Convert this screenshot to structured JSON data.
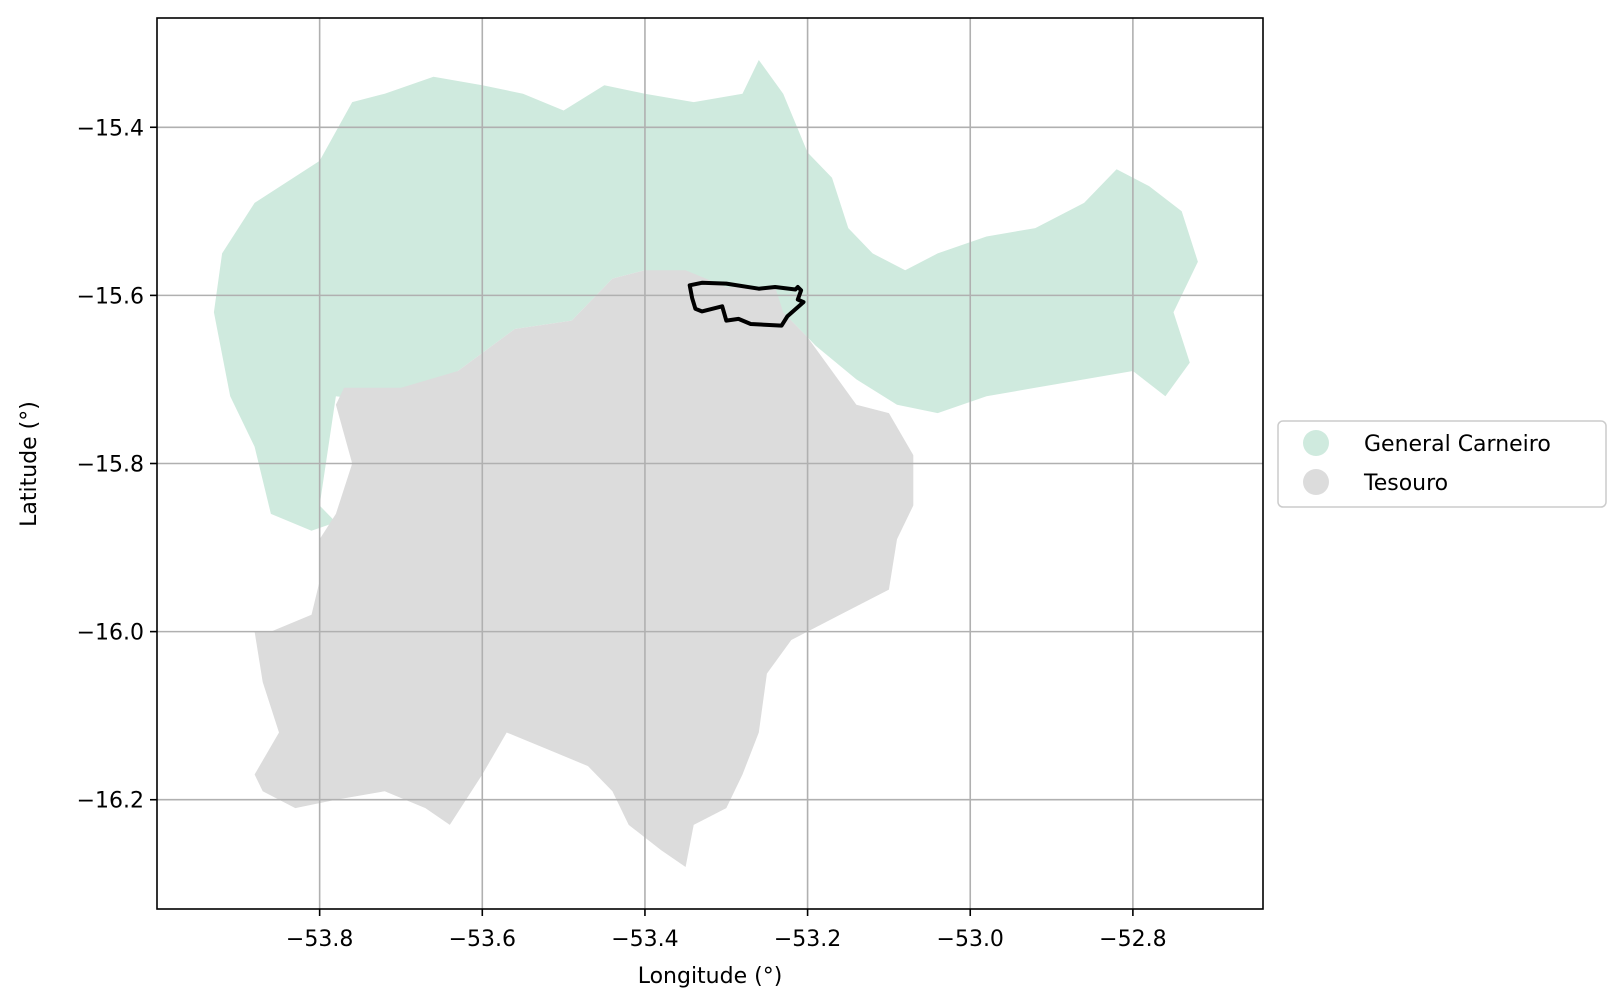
{
  "chart_data": {
    "type": "map",
    "xlabel": "Longitude (°)",
    "ylabel": "Latitude (°)",
    "xlim": [
      -54.0,
      -52.64
    ],
    "ylim": [
      -16.33,
      -15.27
    ],
    "x_ticks": [
      -53.8,
      -53.6,
      -53.4,
      -53.2,
      -53.0,
      -52.8
    ],
    "x_tick_labels": [
      "−53.8",
      "−53.6",
      "−53.4",
      "−53.2",
      "−53.0",
      "−52.8"
    ],
    "y_ticks": [
      -15.4,
      -15.6,
      -15.8,
      -16.0,
      -16.2
    ],
    "y_tick_labels": [
      "−15.4",
      "−15.6",
      "−15.8",
      "−16.0",
      "−16.2"
    ],
    "grid": true,
    "legend_placement": "right, outside plot",
    "series": [
      {
        "name": "General Carneiro",
        "color": "#cfeade",
        "polygon": [
          [
            -53.76,
            -15.37
          ],
          [
            -53.72,
            -15.36
          ],
          [
            -53.66,
            -15.34
          ],
          [
            -53.6,
            -15.35
          ],
          [
            -53.55,
            -15.36
          ],
          [
            -53.5,
            -15.38
          ],
          [
            -53.45,
            -15.35
          ],
          [
            -53.4,
            -15.36
          ],
          [
            -53.34,
            -15.37
          ],
          [
            -53.28,
            -15.36
          ],
          [
            -53.26,
            -15.32
          ],
          [
            -53.23,
            -15.36
          ],
          [
            -53.2,
            -15.43
          ],
          [
            -53.17,
            -15.46
          ],
          [
            -53.15,
            -15.52
          ],
          [
            -53.12,
            -15.55
          ],
          [
            -53.08,
            -15.57
          ],
          [
            -53.04,
            -15.55
          ],
          [
            -52.98,
            -15.53
          ],
          [
            -52.92,
            -15.52
          ],
          [
            -52.86,
            -15.49
          ],
          [
            -52.82,
            -15.45
          ],
          [
            -52.78,
            -15.47
          ],
          [
            -52.74,
            -15.5
          ],
          [
            -52.72,
            -15.56
          ],
          [
            -52.75,
            -15.62
          ],
          [
            -52.73,
            -15.68
          ],
          [
            -52.76,
            -15.72
          ],
          [
            -52.8,
            -15.69
          ],
          [
            -52.86,
            -15.7
          ],
          [
            -52.92,
            -15.71
          ],
          [
            -52.98,
            -15.72
          ],
          [
            -53.04,
            -15.74
          ],
          [
            -53.09,
            -15.73
          ],
          [
            -53.14,
            -15.7
          ],
          [
            -53.19,
            -15.66
          ],
          [
            -53.22,
            -15.63
          ],
          [
            -53.27,
            -15.6
          ],
          [
            -53.33,
            -15.58
          ],
          [
            -53.4,
            -15.57
          ],
          [
            -53.44,
            -15.58
          ],
          [
            -53.49,
            -15.63
          ],
          [
            -53.56,
            -15.64
          ],
          [
            -53.63,
            -15.69
          ],
          [
            -53.7,
            -15.73
          ],
          [
            -53.78,
            -15.72
          ],
          [
            -53.8,
            -15.85
          ],
          [
            -53.78,
            -15.87
          ],
          [
            -53.81,
            -15.88
          ],
          [
            -53.86,
            -15.86
          ],
          [
            -53.88,
            -15.78
          ],
          [
            -53.91,
            -15.72
          ],
          [
            -53.93,
            -15.62
          ],
          [
            -53.92,
            -15.55
          ],
          [
            -53.88,
            -15.49
          ],
          [
            -53.8,
            -15.44
          ]
        ]
      },
      {
        "name": "Tesouro",
        "color": "#dcdcdc",
        "polygon": [
          [
            -53.4,
            -15.57
          ],
          [
            -53.44,
            -15.58
          ],
          [
            -53.49,
            -15.63
          ],
          [
            -53.56,
            -15.64
          ],
          [
            -53.63,
            -15.69
          ],
          [
            -53.7,
            -15.71
          ],
          [
            -53.77,
            -15.71
          ],
          [
            -53.78,
            -15.73
          ],
          [
            -53.76,
            -15.8
          ],
          [
            -53.78,
            -15.86
          ],
          [
            -53.8,
            -15.89
          ],
          [
            -53.8,
            -15.94
          ],
          [
            -53.81,
            -15.98
          ],
          [
            -53.86,
            -16.0
          ],
          [
            -53.88,
            -16.0
          ],
          [
            -53.87,
            -16.06
          ],
          [
            -53.85,
            -16.12
          ],
          [
            -53.88,
            -16.17
          ],
          [
            -53.87,
            -16.19
          ],
          [
            -53.83,
            -16.21
          ],
          [
            -53.78,
            -16.2
          ],
          [
            -53.72,
            -16.19
          ],
          [
            -53.67,
            -16.21
          ],
          [
            -53.64,
            -16.23
          ],
          [
            -53.62,
            -16.2
          ],
          [
            -53.6,
            -16.17
          ],
          [
            -53.57,
            -16.12
          ],
          [
            -53.52,
            -16.14
          ],
          [
            -53.47,
            -16.16
          ],
          [
            -53.44,
            -16.19
          ],
          [
            -53.42,
            -16.23
          ],
          [
            -53.38,
            -16.26
          ],
          [
            -53.35,
            -16.28
          ],
          [
            -53.34,
            -16.23
          ],
          [
            -53.3,
            -16.21
          ],
          [
            -53.28,
            -16.17
          ],
          [
            -53.26,
            -16.12
          ],
          [
            -53.25,
            -16.05
          ],
          [
            -53.22,
            -16.01
          ],
          [
            -53.16,
            -15.98
          ],
          [
            -53.1,
            -15.95
          ],
          [
            -53.09,
            -15.89
          ],
          [
            -53.07,
            -15.85
          ],
          [
            -53.07,
            -15.79
          ],
          [
            -53.1,
            -15.74
          ],
          [
            -53.14,
            -15.73
          ],
          [
            -53.17,
            -15.69
          ],
          [
            -53.2,
            -15.65
          ],
          [
            -53.23,
            -15.62
          ],
          [
            -53.24,
            -15.59
          ],
          [
            -53.3,
            -15.59
          ],
          [
            -53.35,
            -15.57
          ]
        ]
      }
    ],
    "outline": {
      "color": "#000000",
      "points": [
        [
          -53.345,
          -15.588
        ],
        [
          -53.33,
          -15.585
        ],
        [
          -53.3,
          -15.586
        ],
        [
          -53.26,
          -15.592
        ],
        [
          -53.24,
          -15.59
        ],
        [
          -53.215,
          -15.593
        ],
        [
          -53.212,
          -15.59
        ],
        [
          -53.208,
          -15.594
        ],
        [
          -53.212,
          -15.605
        ],
        [
          -53.205,
          -15.608
        ],
        [
          -53.225,
          -15.625
        ],
        [
          -53.232,
          -15.636
        ],
        [
          -53.27,
          -15.634
        ],
        [
          -53.285,
          -15.628
        ],
        [
          -53.3,
          -15.63
        ],
        [
          -53.305,
          -15.613
        ],
        [
          -53.33,
          -15.619
        ],
        [
          -53.338,
          -15.616
        ],
        [
          -53.342,
          -15.603
        ],
        [
          -53.345,
          -15.588
        ]
      ]
    }
  }
}
